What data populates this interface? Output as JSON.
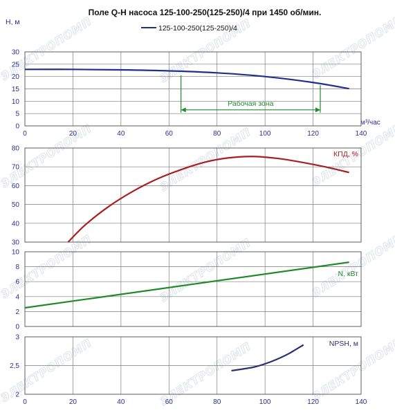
{
  "title": "Поле Q-H насоса 125-100-250(125-250)/4 при 1450 об/мин.",
  "watermark": "ЭЛЕКТРОПОМП",
  "colors": {
    "h_curve": "#1f2f8f",
    "eff_curve": "#a81e22",
    "power_curve": "#1f8a2a",
    "npsh_curve": "#2a2f6e",
    "work_zone": "#1f8a2a",
    "grid": "#7a7a7a",
    "axis_text": "#2a2f8f"
  },
  "chart_data": [
    {
      "type": "line",
      "panel": "head",
      "y_axis_label": "Н, м",
      "x_unit_label": "м³/час",
      "legend": "top-center",
      "grid": true,
      "xlim": [
        0,
        140
      ],
      "ylim": [
        0,
        30
      ],
      "x_ticks": [
        "0",
        "20",
        "40",
        "60",
        "80",
        "100",
        "120",
        "140"
      ],
      "y_ticks": [
        "0",
        "5",
        "10",
        "15",
        "20",
        "25",
        "30"
      ],
      "series": [
        {
          "name": "125-100-250(125-250)/4",
          "x": [
            0,
            20,
            40,
            60,
            80,
            100,
            120,
            135
          ],
          "y": [
            22.9,
            22.9,
            22.7,
            22.3,
            21.5,
            20.0,
            17.6,
            15.1
          ]
        }
      ],
      "work_zone": {
        "label": "Рабочая зона",
        "x_start": 65,
        "x_end": 123
      }
    },
    {
      "type": "line",
      "panel": "efficiency",
      "series_label": "КПД, %",
      "grid": true,
      "xlim": [
        0,
        140
      ],
      "ylim": [
        30,
        80
      ],
      "y_ticks": [
        "30",
        "40",
        "50",
        "60",
        "70",
        "80"
      ],
      "series": [
        {
          "x": [
            18,
            25,
            35,
            45,
            55,
            65,
            75,
            85,
            95,
            105,
            115,
            125,
            135
          ],
          "y": [
            30,
            39,
            49,
            57,
            63.5,
            68.5,
            72.5,
            74.8,
            75.5,
            74.5,
            72.5,
            70,
            67
          ]
        }
      ]
    },
    {
      "type": "line",
      "panel": "power",
      "series_label": "N, кВт",
      "grid": true,
      "xlim": [
        0,
        140
      ],
      "ylim": [
        0,
        10
      ],
      "y_ticks": [
        "0",
        "2",
        "4",
        "6",
        "8",
        "10"
      ],
      "series": [
        {
          "x": [
            0,
            135
          ],
          "y": [
            2.5,
            8.6
          ]
        }
      ]
    },
    {
      "type": "line",
      "panel": "npsh",
      "series_label": "NPSH, м",
      "grid": true,
      "xlim": [
        0,
        140
      ],
      "ylim": [
        2,
        3
      ],
      "x_ticks": [
        "0",
        "20",
        "40",
        "60",
        "80",
        "100",
        "120",
        "140"
      ],
      "y_ticks": [
        "2",
        "2,5",
        "3"
      ],
      "series": [
        {
          "x": [
            86,
            95,
            100,
            105,
            110,
            116
          ],
          "y": [
            2.41,
            2.47,
            2.53,
            2.61,
            2.71,
            2.86
          ]
        }
      ]
    }
  ]
}
